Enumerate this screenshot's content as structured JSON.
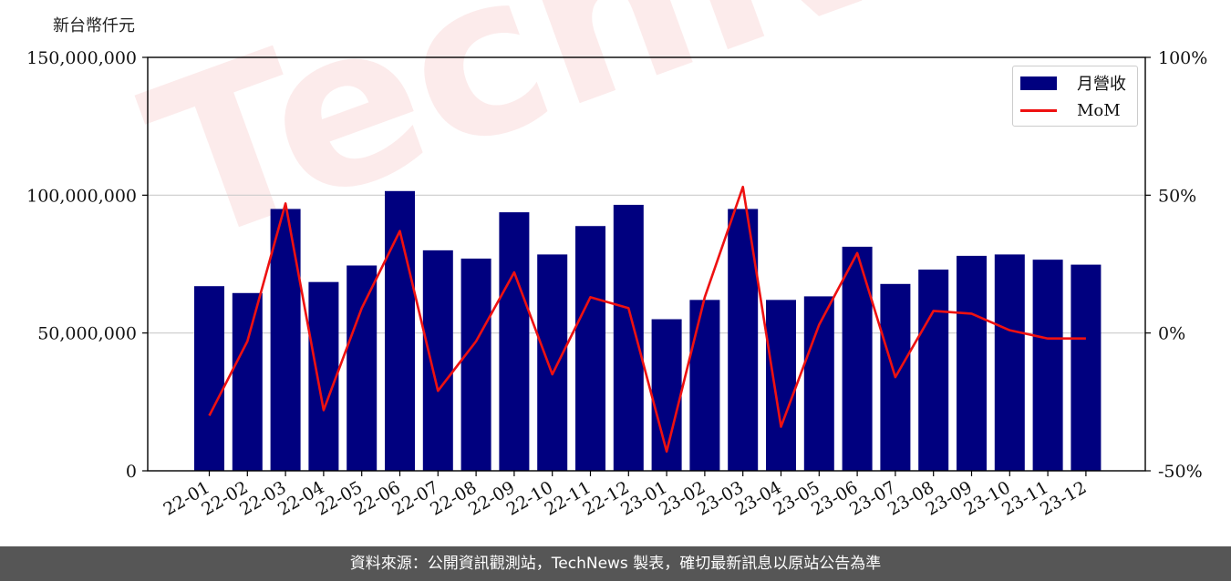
{
  "unit_label": "新台幣仟元",
  "footer": "資料來源：公開資訊觀測站，TechNews 製表，確切最新訊息以原站公告為準",
  "watermark": "TechNews",
  "legend": {
    "bar": "月營收",
    "line": "MoM"
  },
  "colors": {
    "bar": "#00007f",
    "line": "#ee1111",
    "grid": "#cccccc",
    "footer_bg": "#565656"
  },
  "chart_data": {
    "type": "bar",
    "categories": [
      "22-01",
      "22-02",
      "22-03",
      "22-04",
      "22-05",
      "22-06",
      "22-07",
      "22-08",
      "22-09",
      "22-10",
      "22-11",
      "22-12",
      "23-01",
      "23-02",
      "23-03",
      "23-04",
      "23-05",
      "23-06",
      "23-07",
      "23-08",
      "23-09",
      "23-10",
      "23-11",
      "23-12"
    ],
    "series": [
      {
        "name": "月營收",
        "axis": "left",
        "type": "bar",
        "values": [
          67000000,
          64500000,
          95000000,
          68500000,
          74500000,
          101500000,
          80000000,
          77000000,
          93800000,
          78500000,
          88800000,
          96500000,
          55000000,
          62000000,
          95000000,
          62000000,
          63300000,
          81300000,
          67800000,
          73000000,
          78000000,
          78500000,
          76600000,
          74800000
        ]
      },
      {
        "name": "MoM",
        "axis": "right",
        "type": "line",
        "values": [
          -30,
          -3,
          47,
          -28,
          9,
          37,
          -21,
          -3,
          22,
          -15,
          13,
          9,
          -43,
          13,
          53,
          -34,
          3,
          29,
          -16,
          8,
          7,
          1,
          -2,
          -2
        ]
      }
    ],
    "y_left": {
      "min": 0,
      "max": 150000000,
      "ticks": [
        0,
        50000000,
        100000000,
        150000000
      ],
      "tick_labels": [
        "0",
        "50,000,000",
        "100,000,000",
        "150,000,000"
      ]
    },
    "y_right": {
      "min": -50,
      "max": 100,
      "ticks": [
        -50,
        0,
        50,
        100
      ],
      "tick_labels": [
        "-50%",
        "0%",
        "50%",
        "100%"
      ]
    },
    "grid": "horizontal",
    "legend_position": "top-right"
  }
}
